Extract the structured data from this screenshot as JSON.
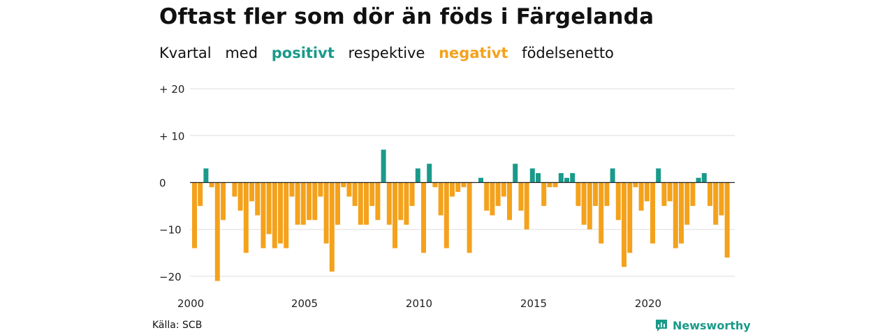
{
  "header": {
    "title": "Oftast fler som dör än föds i Färgelanda",
    "subtitle_parts": [
      "Kvartal",
      "med",
      "positivt",
      "respektive",
      "negativt",
      "födelsenetto"
    ]
  },
  "footer": {
    "source": "Källa: SCB",
    "brand": "Newsworthy"
  },
  "colors": {
    "positive": "#1a9a8a",
    "negative": "#f4a21c",
    "grid": "#dddddd",
    "zero_line": "#222222"
  },
  "chart_data": {
    "type": "bar",
    "title": "Oftast fler som dör än föds i Färgelanda",
    "xlabel": "",
    "ylabel": "",
    "x_start": 2000,
    "period": "quarter",
    "x_ticks": [
      "2000",
      "2005",
      "2010",
      "2015",
      "2020"
    ],
    "y_ticks": [
      {
        "value": 20,
        "label": "+ 20"
      },
      {
        "value": 10,
        "label": "+ 10"
      },
      {
        "value": 0,
        "label": "0"
      },
      {
        "value": -10,
        "label": "−10"
      },
      {
        "value": -20,
        "label": "−20"
      }
    ],
    "ylim": [
      -21,
      20
    ],
    "grid": true,
    "values": [
      -14,
      -5,
      3,
      -1,
      -21,
      -8,
      0,
      -3,
      -6,
      -15,
      -4,
      -7,
      -14,
      -11,
      -14,
      -13,
      -14,
      -3,
      -9,
      -9,
      -8,
      -8,
      -3,
      -13,
      -19,
      -9,
      -1,
      -3,
      -5,
      -9,
      -9,
      -5,
      -8,
      7,
      -9,
      -14,
      -8,
      -9,
      -5,
      3,
      -15,
      4,
      -1,
      -7,
      -14,
      -3,
      -2,
      -1,
      -15,
      0,
      1,
      -6,
      -7,
      -5,
      -3,
      -8,
      4,
      -6,
      -10,
      3,
      2,
      -5,
      -1,
      -1,
      2,
      1,
      2,
      -5,
      -9,
      -10,
      -5,
      -13,
      -5,
      3,
      -8,
      -18,
      -15,
      -1,
      -6,
      -4,
      -13,
      3,
      -5,
      -4,
      -14,
      -13,
      -9,
      -5,
      1,
      2,
      -5,
      -9,
      -7,
      -16
    ]
  }
}
